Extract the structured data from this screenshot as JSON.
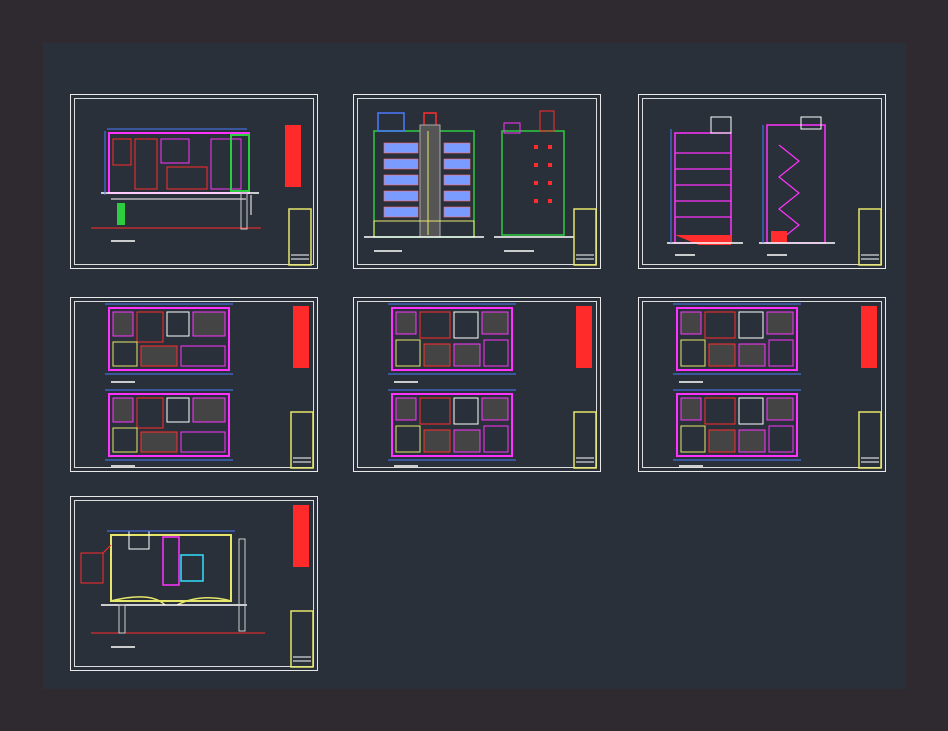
{
  "viewport": {
    "background": "#2e2a30",
    "model_space": "#2a3039"
  },
  "colors": {
    "frame": "#e9e9e9",
    "title_block": "#e6e66a",
    "wall": "#ff33ff",
    "walls_alt": "#ff2d2d",
    "grid_blue": "#4a7bff",
    "green": "#2ecc40",
    "white_line": "#ffffff",
    "cyan": "#33e0ff",
    "legend_red": "#ff2a2a"
  },
  "sheets": [
    {
      "id": "site-plan",
      "type": "plan-site"
    },
    {
      "id": "elevations",
      "type": "elevations"
    },
    {
      "id": "sections",
      "type": "sections"
    },
    {
      "id": "floor-plans-1",
      "type": "floor-plans"
    },
    {
      "id": "floor-plans-2",
      "type": "floor-plans"
    },
    {
      "id": "floor-plans-3",
      "type": "floor-plans"
    },
    {
      "id": "roof-plan",
      "type": "roof-plan"
    }
  ]
}
